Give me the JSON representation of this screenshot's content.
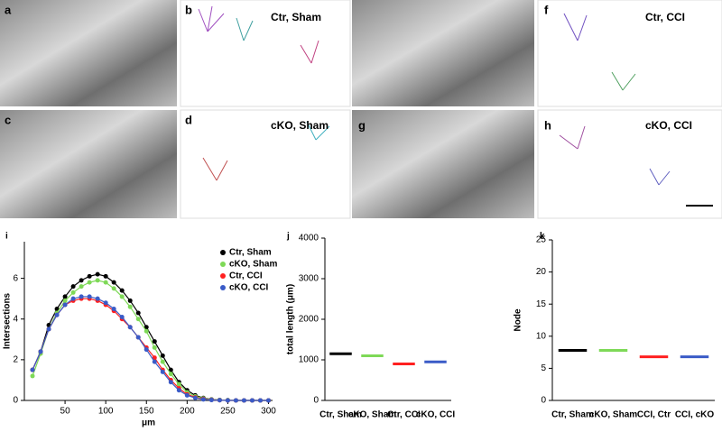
{
  "panels": [
    {
      "label": "a"
    },
    {
      "label": "b",
      "title": "Ctr, Sham"
    },
    {
      "label": "c"
    },
    {
      "label": "d",
      "title": "cKO, Sham"
    },
    {
      "label": "f",
      "title": "Ctr, CCI"
    },
    {
      "label": "g"
    },
    {
      "label": "h",
      "title": "cKO, CCI"
    }
  ],
  "chart_data": [
    {
      "type": "line",
      "panel_label": "i",
      "ylabel": "Intersections",
      "xlabel": "μm",
      "x": [
        10,
        20,
        30,
        40,
        50,
        60,
        70,
        80,
        90,
        100,
        110,
        120,
        130,
        140,
        150,
        160,
        170,
        180,
        190,
        200,
        210,
        220,
        230,
        240,
        250,
        260,
        270,
        280,
        290,
        300
      ],
      "xlim": [
        0,
        305
      ],
      "xticks": [
        50,
        100,
        150,
        200,
        250,
        300
      ],
      "ylim": [
        0,
        7.8
      ],
      "yticks": [
        0,
        2,
        4,
        6
      ],
      "legend": "upper right",
      "series": [
        {
          "name": "Ctr, Sham",
          "color": "#000000",
          "values": [
            1.5,
            2.4,
            3.7,
            4.5,
            5.1,
            5.6,
            5.9,
            6.1,
            6.2,
            6.1,
            5.8,
            5.4,
            4.9,
            4.3,
            3.6,
            2.9,
            2.2,
            1.5,
            0.9,
            0.5,
            0.25,
            0.12,
            0.05,
            0.02,
            0.01,
            0,
            0,
            0,
            0,
            0
          ]
        },
        {
          "name": "cKO, Sham",
          "color": "#7ed957",
          "values": [
            1.2,
            2.3,
            3.5,
            4.3,
            4.9,
            5.3,
            5.6,
            5.8,
            5.9,
            5.8,
            5.5,
            5.1,
            4.6,
            4.0,
            3.4,
            2.6,
            1.9,
            1.3,
            0.8,
            0.4,
            0.2,
            0.1,
            0.04,
            0.02,
            0.01,
            0,
            0,
            0,
            0,
            0
          ]
        },
        {
          "name": "Ctr, CCI",
          "color": "#ff2020",
          "values": [
            1.5,
            2.4,
            3.5,
            4.2,
            4.7,
            4.9,
            5.0,
            5.0,
            4.9,
            4.7,
            4.4,
            4.0,
            3.6,
            3.1,
            2.6,
            2.1,
            1.5,
            1.0,
            0.6,
            0.3,
            0.15,
            0.07,
            0.03,
            0.01,
            0,
            0,
            0,
            0,
            0,
            0
          ]
        },
        {
          "name": "cKO, CCI",
          "color": "#3a5bc7",
          "values": [
            1.5,
            2.4,
            3.5,
            4.2,
            4.7,
            5.0,
            5.1,
            5.1,
            5.0,
            4.8,
            4.5,
            4.1,
            3.6,
            3.1,
            2.5,
            1.9,
            1.4,
            0.9,
            0.5,
            0.25,
            0.12,
            0.05,
            0.02,
            0.01,
            0,
            0,
            0,
            0,
            0,
            0
          ]
        }
      ]
    },
    {
      "type": "dot",
      "panel_label": "j",
      "ylabel": "total length (μm)",
      "categories": [
        "Ctr, Sham",
        "cKO, Sham",
        "Ctr, CCI",
        "cKO, CCI"
      ],
      "values": [
        1150,
        1100,
        900,
        950
      ],
      "colors": [
        "#000000",
        "#7ed957",
        "#ff2020",
        "#3a5bc7"
      ],
      "ylim": [
        0,
        4000
      ],
      "yticks": [
        0,
        1000,
        2000,
        3000,
        4000
      ]
    },
    {
      "type": "dot",
      "panel_label": "k",
      "ylabel": "Node",
      "categories": [
        "Ctr, Sham",
        "cKO, Sham",
        "CCI, Ctr",
        "CCI, cKO"
      ],
      "values": [
        7.8,
        7.8,
        6.8,
        6.8
      ],
      "colors": [
        "#000000",
        "#7ed957",
        "#ff2020",
        "#3a5bc7"
      ],
      "ylim": [
        0,
        25
      ],
      "yticks": [
        0,
        5,
        10,
        15,
        20,
        25
      ]
    }
  ]
}
